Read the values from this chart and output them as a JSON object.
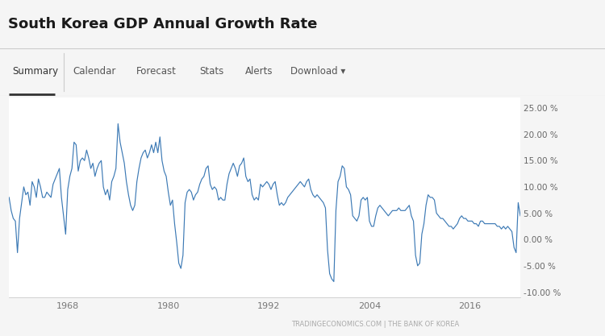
{
  "title": "South Korea GDP Annual Growth Rate",
  "nav_items": [
    "Summary",
    "Calendar",
    "Forecast",
    "Stats",
    "Alerts",
    "Download ▾"
  ],
  "nav_active": "Summary",
  "watermark": "TRADINGECONOMICS.COM | THE BANK OF KOREA",
  "line_color": "#3d7ab5",
  "background_color": "#f5f5f5",
  "plot_bg_color": "#ffffff",
  "nav_bg_color": "#ffffff",
  "grid_color": "#e8e8e8",
  "border_color": "#cccccc",
  "ylim": [
    -11,
    27
  ],
  "yticks": [
    -10,
    -5,
    0,
    5,
    10,
    15,
    20,
    25
  ],
  "ytick_labels": [
    "-10.00 %",
    "-5.00 %",
    "0.00 %",
    "5.00 %",
    "10.00 %",
    "15.00 %",
    "20.00 %",
    "25.00 %"
  ],
  "xticks": [
    1968,
    1980,
    1992,
    2004,
    2016
  ],
  "xmin": 1961.0,
  "xmax": 2022.0,
  "series": [
    [
      1961.0,
      8.0
    ],
    [
      1961.25,
      5.5
    ],
    [
      1961.5,
      4.0
    ],
    [
      1961.75,
      3.5
    ],
    [
      1962.0,
      -2.5
    ],
    [
      1962.25,
      4.0
    ],
    [
      1962.5,
      7.0
    ],
    [
      1962.75,
      10.0
    ],
    [
      1963.0,
      8.5
    ],
    [
      1963.25,
      9.0
    ],
    [
      1963.5,
      6.5
    ],
    [
      1963.75,
      11.0
    ],
    [
      1964.0,
      10.0
    ],
    [
      1964.25,
      8.0
    ],
    [
      1964.5,
      11.5
    ],
    [
      1964.75,
      10.0
    ],
    [
      1965.0,
      8.0
    ],
    [
      1965.25,
      8.0
    ],
    [
      1965.5,
      9.0
    ],
    [
      1965.75,
      8.5
    ],
    [
      1966.0,
      8.0
    ],
    [
      1966.25,
      10.5
    ],
    [
      1966.5,
      11.5
    ],
    [
      1966.75,
      12.5
    ],
    [
      1967.0,
      13.5
    ],
    [
      1967.25,
      8.0
    ],
    [
      1967.5,
      4.5
    ],
    [
      1967.75,
      1.0
    ],
    [
      1968.0,
      9.5
    ],
    [
      1968.25,
      12.0
    ],
    [
      1968.5,
      13.5
    ],
    [
      1968.75,
      18.5
    ],
    [
      1969.0,
      18.0
    ],
    [
      1969.25,
      13.0
    ],
    [
      1969.5,
      15.0
    ],
    [
      1969.75,
      15.5
    ],
    [
      1970.0,
      15.0
    ],
    [
      1970.25,
      17.0
    ],
    [
      1970.5,
      15.5
    ],
    [
      1970.75,
      13.5
    ],
    [
      1971.0,
      14.5
    ],
    [
      1971.25,
      12.0
    ],
    [
      1971.5,
      13.5
    ],
    [
      1971.75,
      14.5
    ],
    [
      1972.0,
      15.0
    ],
    [
      1972.25,
      10.0
    ],
    [
      1972.5,
      8.5
    ],
    [
      1972.75,
      9.5
    ],
    [
      1973.0,
      7.5
    ],
    [
      1973.25,
      11.0
    ],
    [
      1973.5,
      12.0
    ],
    [
      1973.75,
      13.5
    ],
    [
      1974.0,
      22.0
    ],
    [
      1974.25,
      18.5
    ],
    [
      1974.5,
      16.5
    ],
    [
      1974.75,
      14.5
    ],
    [
      1975.0,
      11.0
    ],
    [
      1975.25,
      8.5
    ],
    [
      1975.5,
      6.5
    ],
    [
      1975.75,
      5.5
    ],
    [
      1976.0,
      6.5
    ],
    [
      1976.25,
      11.0
    ],
    [
      1976.5,
      13.5
    ],
    [
      1976.75,
      15.5
    ],
    [
      1977.0,
      16.5
    ],
    [
      1977.25,
      17.0
    ],
    [
      1977.5,
      15.5
    ],
    [
      1977.75,
      16.5
    ],
    [
      1978.0,
      18.0
    ],
    [
      1978.25,
      16.5
    ],
    [
      1978.5,
      18.5
    ],
    [
      1978.75,
      16.5
    ],
    [
      1979.0,
      19.5
    ],
    [
      1979.25,
      15.0
    ],
    [
      1979.5,
      13.0
    ],
    [
      1979.75,
      12.0
    ],
    [
      1980.0,
      9.0
    ],
    [
      1980.25,
      6.5
    ],
    [
      1980.5,
      7.5
    ],
    [
      1980.75,
      3.0
    ],
    [
      1981.0,
      -0.5
    ],
    [
      1981.25,
      -4.5
    ],
    [
      1981.5,
      -5.5
    ],
    [
      1981.75,
      -3.0
    ],
    [
      1982.0,
      7.0
    ],
    [
      1982.25,
      9.0
    ],
    [
      1982.5,
      9.5
    ],
    [
      1982.75,
      9.0
    ],
    [
      1983.0,
      7.5
    ],
    [
      1983.25,
      8.5
    ],
    [
      1983.5,
      9.0
    ],
    [
      1983.75,
      10.5
    ],
    [
      1984.0,
      11.5
    ],
    [
      1984.25,
      12.0
    ],
    [
      1984.5,
      13.5
    ],
    [
      1984.75,
      14.0
    ],
    [
      1985.0,
      10.5
    ],
    [
      1985.25,
      9.5
    ],
    [
      1985.5,
      10.0
    ],
    [
      1985.75,
      9.5
    ],
    [
      1986.0,
      7.5
    ],
    [
      1986.25,
      8.0
    ],
    [
      1986.5,
      7.5
    ],
    [
      1986.75,
      7.5
    ],
    [
      1987.0,
      10.5
    ],
    [
      1987.25,
      12.5
    ],
    [
      1987.5,
      13.5
    ],
    [
      1987.75,
      14.5
    ],
    [
      1988.0,
      13.5
    ],
    [
      1988.25,
      12.0
    ],
    [
      1988.5,
      14.0
    ],
    [
      1988.75,
      14.5
    ],
    [
      1989.0,
      15.5
    ],
    [
      1989.25,
      12.0
    ],
    [
      1989.5,
      11.0
    ],
    [
      1989.75,
      11.5
    ],
    [
      1990.0,
      8.5
    ],
    [
      1990.25,
      7.5
    ],
    [
      1990.5,
      8.0
    ],
    [
      1990.75,
      7.5
    ],
    [
      1991.0,
      10.5
    ],
    [
      1991.25,
      10.0
    ],
    [
      1991.5,
      10.5
    ],
    [
      1991.75,
      11.0
    ],
    [
      1992.0,
      10.5
    ],
    [
      1992.25,
      9.5
    ],
    [
      1992.5,
      10.5
    ],
    [
      1992.75,
      11.0
    ],
    [
      1993.0,
      8.5
    ],
    [
      1993.25,
      6.5
    ],
    [
      1993.5,
      7.0
    ],
    [
      1993.75,
      6.5
    ],
    [
      1994.0,
      7.0
    ],
    [
      1994.25,
      8.0
    ],
    [
      1994.5,
      8.5
    ],
    [
      1994.75,
      9.0
    ],
    [
      1995.0,
      9.5
    ],
    [
      1995.25,
      10.0
    ],
    [
      1995.5,
      10.5
    ],
    [
      1995.75,
      11.0
    ],
    [
      1996.0,
      10.5
    ],
    [
      1996.25,
      10.0
    ],
    [
      1996.5,
      11.0
    ],
    [
      1996.75,
      11.5
    ],
    [
      1997.0,
      9.5
    ],
    [
      1997.25,
      8.5
    ],
    [
      1997.5,
      8.0
    ],
    [
      1997.75,
      8.5
    ],
    [
      1998.0,
      8.0
    ],
    [
      1998.25,
      7.5
    ],
    [
      1998.5,
      7.0
    ],
    [
      1998.75,
      6.0
    ],
    [
      1999.0,
      -2.0
    ],
    [
      1999.25,
      -6.5
    ],
    [
      1999.5,
      -7.5
    ],
    [
      1999.75,
      -8.0
    ],
    [
      2000.0,
      5.5
    ],
    [
      2000.25,
      11.0
    ],
    [
      2000.5,
      12.0
    ],
    [
      2000.75,
      14.0
    ],
    [
      2001.0,
      13.5
    ],
    [
      2001.25,
      10.0
    ],
    [
      2001.5,
      9.5
    ],
    [
      2001.75,
      8.5
    ],
    [
      2002.0,
      4.5
    ],
    [
      2002.25,
      4.0
    ],
    [
      2002.5,
      3.5
    ],
    [
      2002.75,
      4.5
    ],
    [
      2003.0,
      7.5
    ],
    [
      2003.25,
      8.0
    ],
    [
      2003.5,
      7.5
    ],
    [
      2003.75,
      8.0
    ],
    [
      2004.0,
      3.5
    ],
    [
      2004.25,
      2.5
    ],
    [
      2004.5,
      2.5
    ],
    [
      2004.75,
      4.5
    ],
    [
      2005.0,
      6.0
    ],
    [
      2005.25,
      6.5
    ],
    [
      2005.5,
      6.0
    ],
    [
      2005.75,
      5.5
    ],
    [
      2006.0,
      5.0
    ],
    [
      2006.25,
      4.5
    ],
    [
      2006.5,
      5.0
    ],
    [
      2006.75,
      5.5
    ],
    [
      2007.0,
      5.5
    ],
    [
      2007.25,
      5.5
    ],
    [
      2007.5,
      6.0
    ],
    [
      2007.75,
      5.5
    ],
    [
      2008.0,
      5.5
    ],
    [
      2008.25,
      5.5
    ],
    [
      2008.5,
      6.0
    ],
    [
      2008.75,
      6.5
    ],
    [
      2009.0,
      4.5
    ],
    [
      2009.25,
      3.5
    ],
    [
      2009.5,
      -3.0
    ],
    [
      2009.75,
      -5.0
    ],
    [
      2010.0,
      -4.5
    ],
    [
      2010.25,
      1.0
    ],
    [
      2010.5,
      3.0
    ],
    [
      2010.75,
      6.5
    ],
    [
      2011.0,
      8.5
    ],
    [
      2011.25,
      8.0
    ],
    [
      2011.5,
      8.0
    ],
    [
      2011.75,
      7.5
    ],
    [
      2012.0,
      5.0
    ],
    [
      2012.25,
      4.5
    ],
    [
      2012.5,
      4.0
    ],
    [
      2012.75,
      4.0
    ],
    [
      2013.0,
      3.5
    ],
    [
      2013.25,
      3.0
    ],
    [
      2013.5,
      2.5
    ],
    [
      2013.75,
      2.5
    ],
    [
      2014.0,
      2.0
    ],
    [
      2014.25,
      2.5
    ],
    [
      2014.5,
      3.0
    ],
    [
      2014.75,
      4.0
    ],
    [
      2015.0,
      4.5
    ],
    [
      2015.25,
      4.0
    ],
    [
      2015.5,
      4.0
    ],
    [
      2015.75,
      3.5
    ],
    [
      2016.0,
      3.5
    ],
    [
      2016.25,
      3.5
    ],
    [
      2016.5,
      3.0
    ],
    [
      2016.75,
      3.0
    ],
    [
      2017.0,
      2.5
    ],
    [
      2017.25,
      3.5
    ],
    [
      2017.5,
      3.5
    ],
    [
      2017.75,
      3.0
    ],
    [
      2018.0,
      3.0
    ],
    [
      2018.25,
      3.0
    ],
    [
      2018.5,
      3.0
    ],
    [
      2018.75,
      3.0
    ],
    [
      2019.0,
      3.0
    ],
    [
      2019.25,
      2.5
    ],
    [
      2019.5,
      2.5
    ],
    [
      2019.75,
      2.0
    ],
    [
      2020.0,
      2.5
    ],
    [
      2020.25,
      2.0
    ],
    [
      2020.5,
      2.5
    ],
    [
      2020.75,
      2.0
    ],
    [
      2021.0,
      1.5
    ],
    [
      2021.25,
      -1.5
    ],
    [
      2021.5,
      -2.5
    ],
    [
      2021.75,
      7.0
    ],
    [
      2022.0,
      4.5
    ]
  ]
}
